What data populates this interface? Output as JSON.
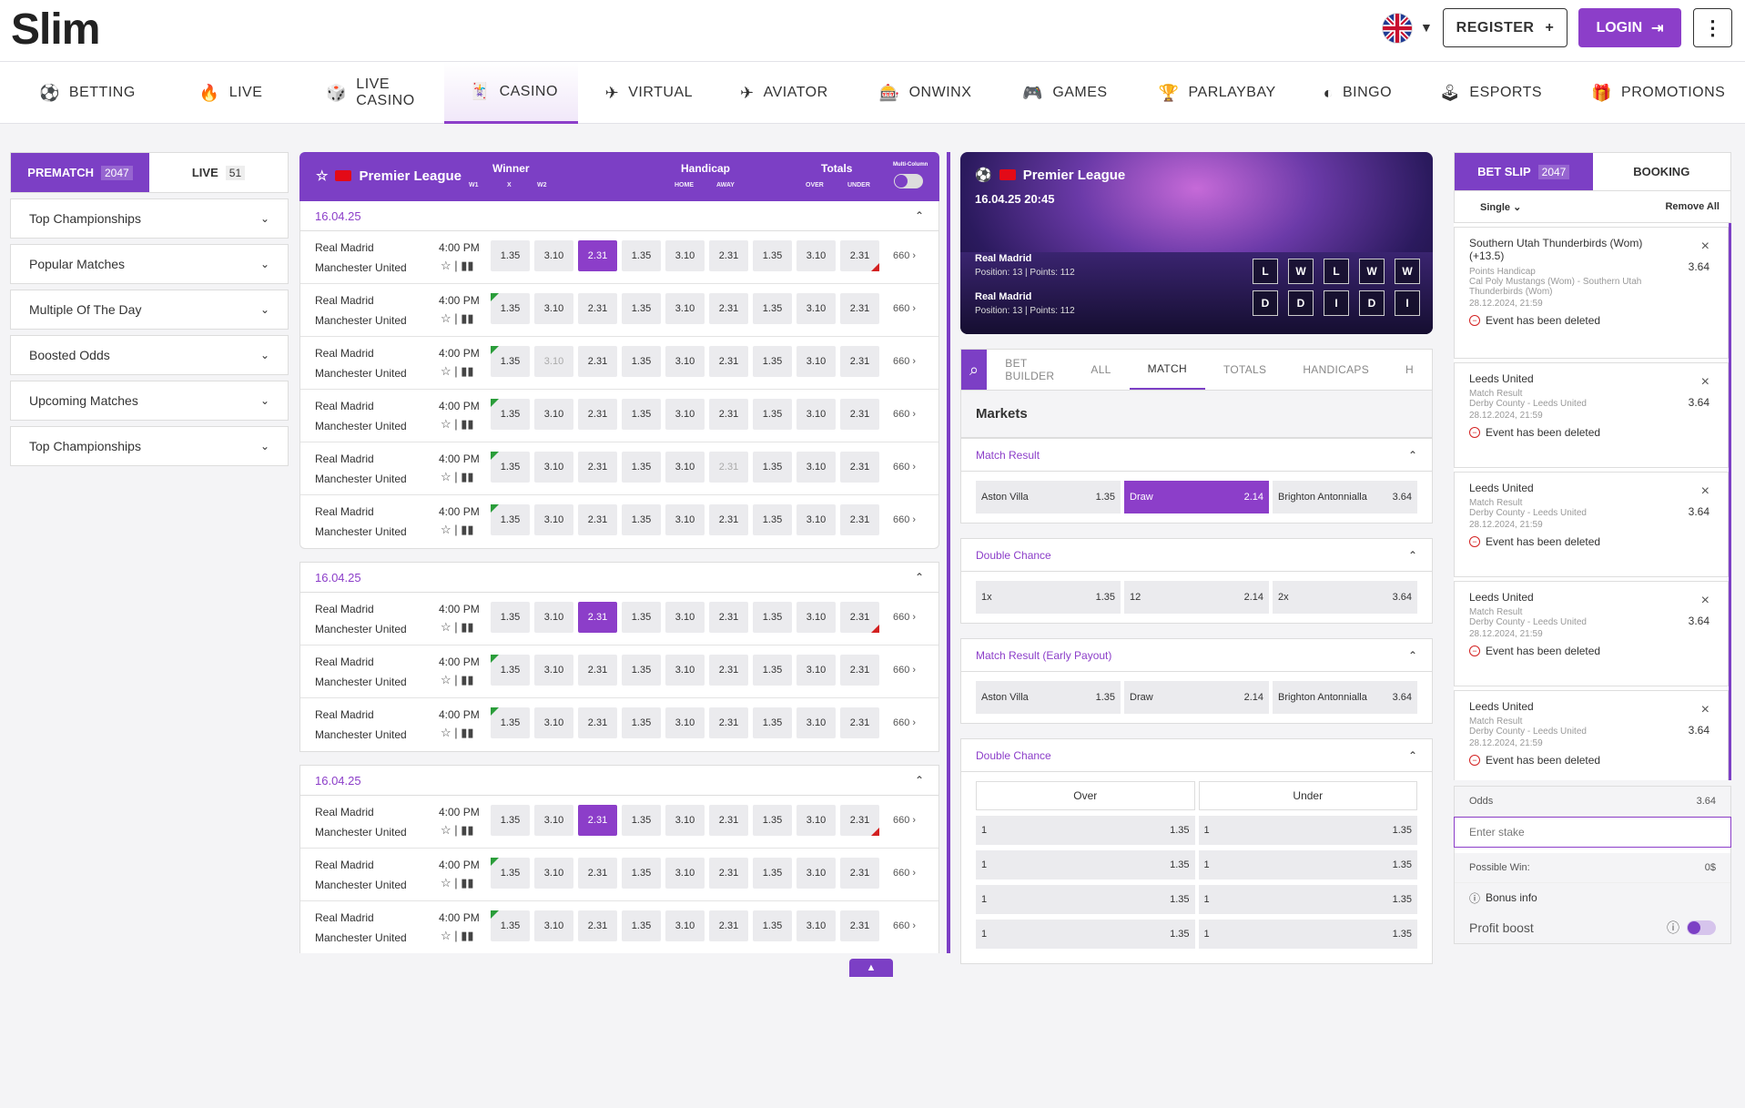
{
  "header": {
    "logo": "Slim",
    "register": "REGISTER",
    "register_icon": "+",
    "login": "LOGIN",
    "more": "⋮"
  },
  "nav": [
    {
      "label": "BETTING",
      "icon": "⚽"
    },
    {
      "label": "LIVE",
      "icon": "🔥"
    },
    {
      "label": "LIVE CASINO",
      "icon": "🎲"
    },
    {
      "label": "CASINO",
      "icon": "🃏"
    },
    {
      "label": "VIRTUAL",
      "icon": "✈"
    },
    {
      "label": "AVIATOR",
      "icon": "✈"
    },
    {
      "label": "ONWINX",
      "icon": "🎰"
    },
    {
      "label": "GAMES",
      "icon": "🎮"
    },
    {
      "label": "PARLAYBAY",
      "icon": "🏆"
    },
    {
      "label": "BINGO",
      "icon": "◐"
    },
    {
      "label": "ESPORTS",
      "icon": "🕹"
    },
    {
      "label": "PROMOTIONS",
      "icon": "🎁"
    }
  ],
  "sidebar": {
    "tab_prematch": "PREMATCH",
    "prematch_count": "2047",
    "tab_live": "LIVE",
    "live_count": "51",
    "items": [
      "Top Championships",
      "Popular Matches",
      "Multiple Of The Day",
      "Boosted Odds",
      "Upcoming Matches",
      "Top Championships"
    ]
  },
  "events": {
    "league": "Premier League",
    "markets": {
      "winner": "Winner",
      "w1": "W1",
      "x": "X",
      "w2": "W2",
      "handicap": "Handicap",
      "home": "HOME",
      "away": "AWAY",
      "totals": "Totals",
      "over": "OVER",
      "under": "UNDER",
      "multi": "Multi-Column"
    },
    "groups": [
      {
        "date": "16.04.25",
        "rows": 6
      },
      {
        "date": "16.04.25",
        "rows": 3
      },
      {
        "date": "16.04.25",
        "rows": 3
      }
    ],
    "team1": "Real Madrid",
    "team2": "Manchester United",
    "time": "4:00 PM",
    "more": "660",
    "odds": [
      "1.35",
      "3.10",
      "2.31",
      "1.35",
      "3.10",
      "2.31",
      "1.35",
      "3.10",
      "2.31"
    ]
  },
  "center": {
    "banner": {
      "league": "Premier League",
      "datetime": "16.04.25 20:45",
      "team1": "Real Madrid",
      "pos1": "Position: 13 | Points: 112",
      "team2": "Real Madrid",
      "pos2": "Position: 13 | Points: 112",
      "form1": [
        "L",
        "W",
        "L",
        "W",
        "W"
      ],
      "form2": [
        "D",
        "D",
        "I",
        "D",
        "I"
      ]
    },
    "tabs": [
      "BET BUILDER",
      "ALL",
      "MATCH",
      "TOTALS",
      "HANDICAPS",
      "H"
    ],
    "markets_title": "Markets",
    "m1": {
      "title": "Match Result",
      "cells": [
        [
          "Aston Villa",
          "1.35"
        ],
        [
          "Draw",
          "2.14"
        ],
        [
          "Brighton Antonnialla",
          "3.64"
        ]
      ]
    },
    "m2": {
      "title": "Double Chance",
      "cells": [
        [
          "1x",
          "1.35"
        ],
        [
          "12",
          "2.14"
        ],
        [
          "2x",
          "3.64"
        ]
      ]
    },
    "m3": {
      "title": "Match Result (Early Payout)",
      "cells": [
        [
          "Aston Villa",
          "1.35"
        ],
        [
          "Draw",
          "2.14"
        ],
        [
          "Brighton Antonnialla",
          "3.64"
        ]
      ]
    },
    "m4": {
      "title": "Double Chance",
      "over": "Over",
      "under": "Under",
      "rows": [
        [
          "1",
          "1.35",
          "1",
          "1.35"
        ],
        [
          "1",
          "1.35",
          "1",
          "1.35"
        ],
        [
          "1",
          "1.35",
          "1",
          "1.35"
        ],
        [
          "1",
          "1.35",
          "1",
          "1.35"
        ]
      ]
    }
  },
  "slip": {
    "tab_slip": "BET SLIP",
    "slip_count": "2047",
    "tab_booking": "BOOKING",
    "single": "Single",
    "remove_all": "Remove All",
    "items": [
      {
        "title": "Southern Utah Thunderbirds (Wom) (+13.5)",
        "type": "Points Handicap",
        "match": "Cal Poly Mustangs (Wom) - Southern Utah Thunderbirds (Wom)",
        "date": "28.12.2024, 21:59",
        "odd": "3.64"
      },
      {
        "title": "Leeds United",
        "type": "Match Result",
        "match": "Derby County - Leeds United",
        "date": "28.12.2024, 21:59",
        "odd": "3.64"
      },
      {
        "title": "Leeds United",
        "type": "Match Result",
        "match": "Derby County - Leeds United",
        "date": "28.12.2024, 21:59",
        "odd": "3.64"
      },
      {
        "title": "Leeds United",
        "type": "Match Result",
        "match": "Derby County - Leeds United",
        "date": "28.12.2024, 21:59",
        "odd": "3.64"
      },
      {
        "title": "Leeds United",
        "type": "Match Result",
        "match": "Derby County - Leeds United",
        "date": "28.12.2024, 21:59",
        "odd": "3.64"
      }
    ],
    "deleted": "Event has been deleted",
    "odds_label": "Odds",
    "odds_value": "3.64",
    "stake_placeholder": "Enter stake",
    "possible_win": "Possible Win:",
    "possible_win_value": "0$",
    "bonus": "Bonus info",
    "profit_boost": "Profit boost"
  }
}
